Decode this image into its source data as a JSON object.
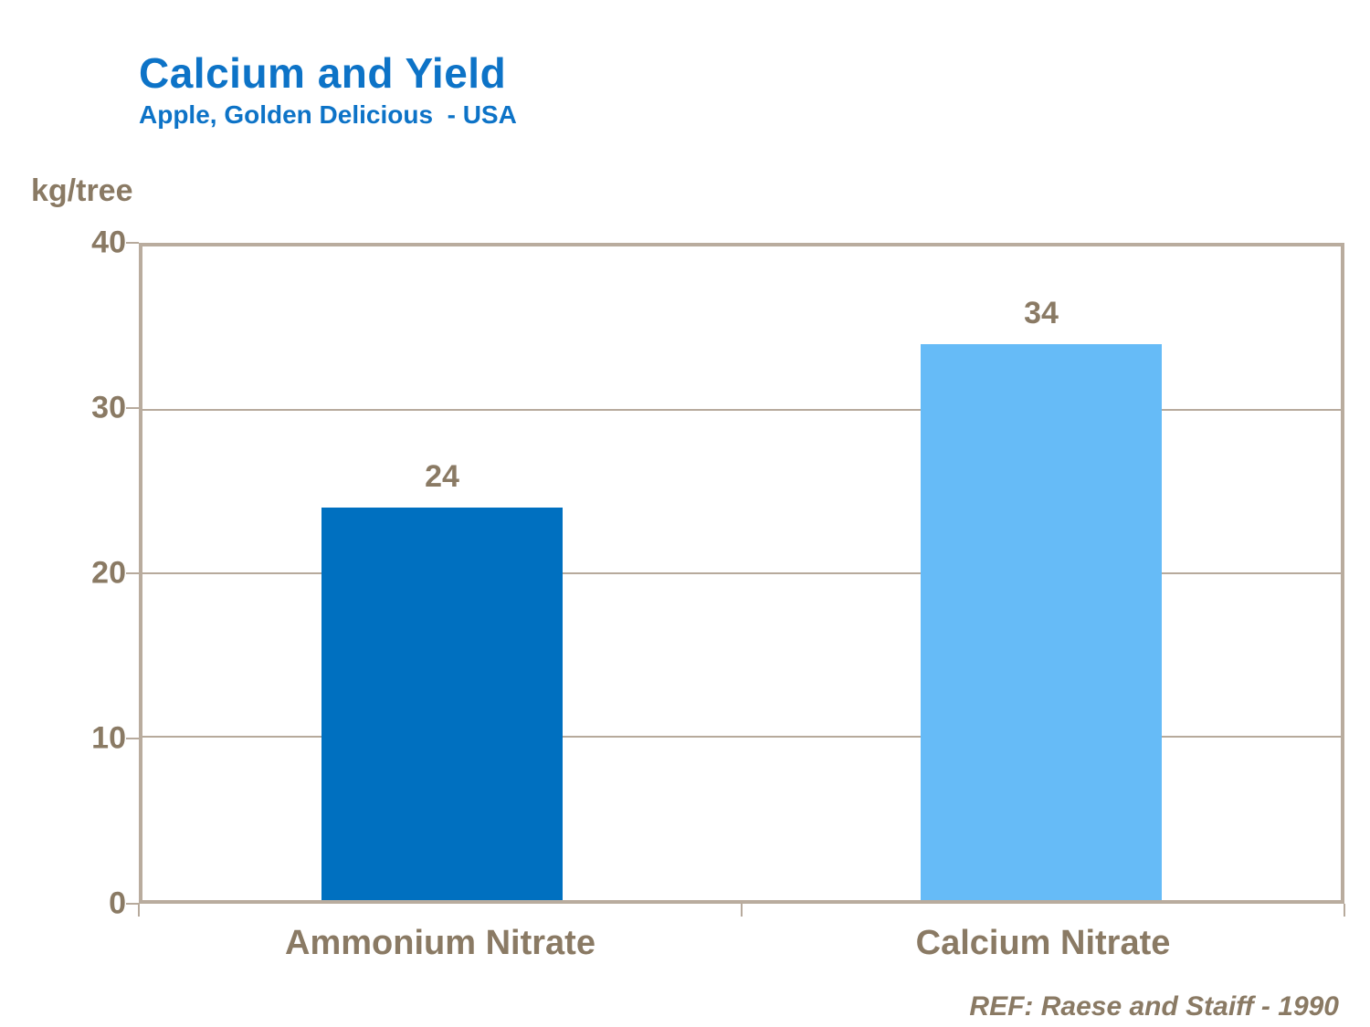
{
  "header": {
    "title": "Calcium and Yield",
    "subtitle": "Apple, Golden Delicious  - USA"
  },
  "footer": {
    "reference": "REF: Raese and Staiff - 1990"
  },
  "chart_data": {
    "type": "bar",
    "title": "Calcium and Yield",
    "subtitle": "Apple, Golden Delicious  - USA",
    "ylabel": "kg/tree",
    "xlabel": "",
    "categories": [
      "Ammonium Nitrate",
      "Calcium Nitrate"
    ],
    "values": [
      24,
      34
    ],
    "ylim": [
      0,
      40
    ],
    "yticks": [
      0,
      10,
      20,
      30,
      40
    ],
    "grid": true,
    "legend": false,
    "bar_colors": [
      "#0070c0",
      "#66bbf7"
    ],
    "value_label_color": "#8a7a64",
    "axis_color": "#b7aa9c",
    "annotation": "REF: Raese and Staiff - 1990"
  },
  "colors": {
    "title_blue": "#0d73c7",
    "text_brown": "#8a7a64",
    "axis_tan": "#b7aa9c",
    "bar_dark_blue": "#0070c0",
    "bar_light_blue": "#66bbf7",
    "background": "#ffffff"
  }
}
